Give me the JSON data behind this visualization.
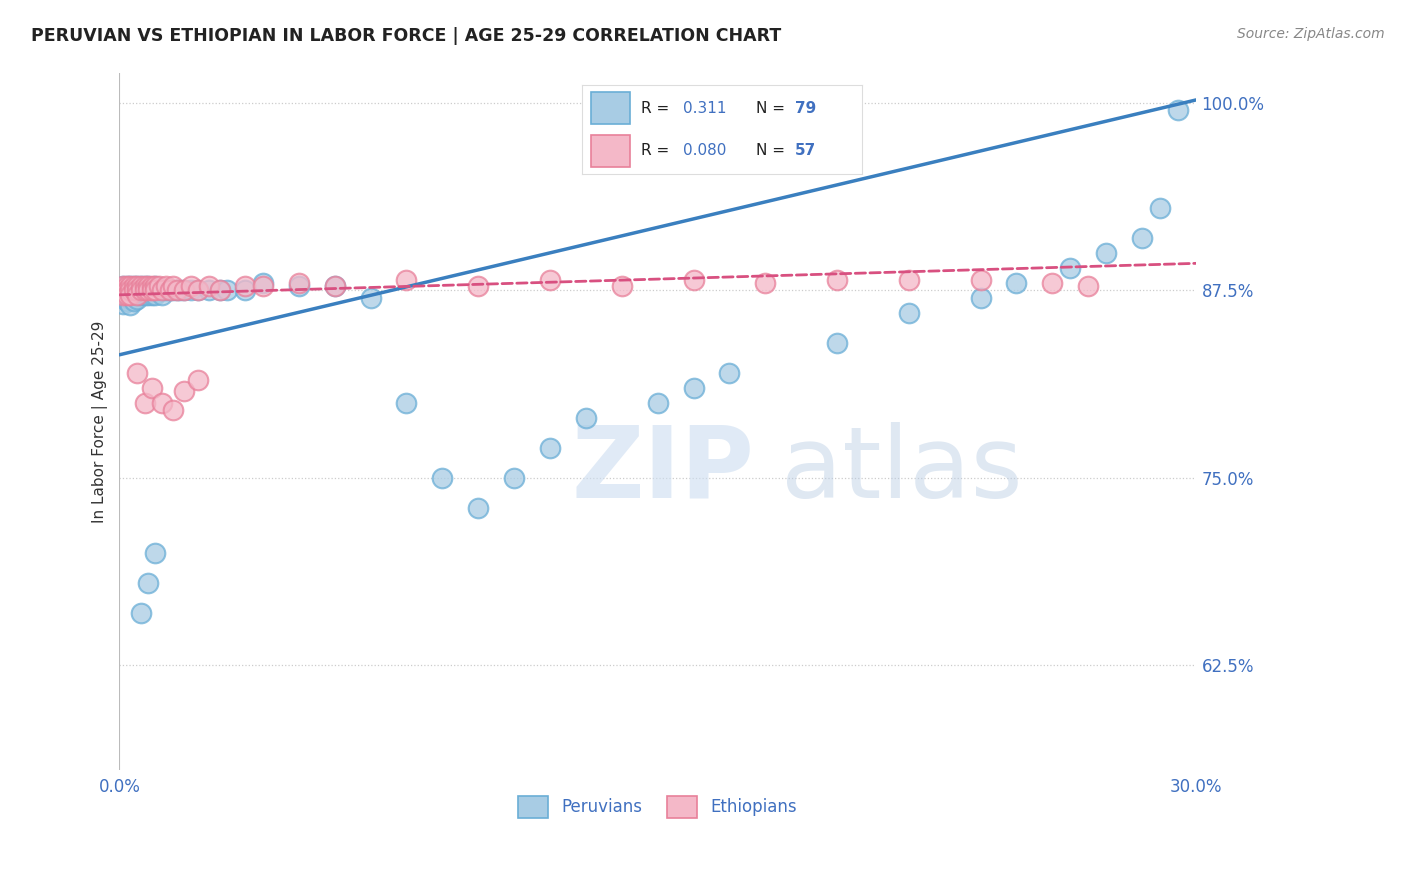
{
  "title": "PERUVIAN VS ETHIOPIAN IN LABOR FORCE | AGE 25-29 CORRELATION CHART",
  "source": "Source: ZipAtlas.com",
  "xlabel_peruvians": "Peruvians",
  "xlabel_ethiopians": "Ethiopians",
  "ylabel": "In Labor Force | Age 25-29",
  "xlim": [
    0.0,
    0.3
  ],
  "ylim": [
    0.555,
    1.02
  ],
  "yticks": [
    0.625,
    0.75,
    0.875,
    1.0
  ],
  "yticklabels": [
    "62.5%",
    "75.0%",
    "87.5%",
    "100.0%"
  ],
  "blue_color": "#a8cce4",
  "blue_edge": "#6aaed6",
  "pink_color": "#f4b8c8",
  "pink_edge": "#e8809a",
  "trend_blue": "#3a7fbf",
  "trend_pink": "#d85080",
  "legend_r_blue": "0.311",
  "legend_n_blue": "79",
  "legend_r_pink": "0.080",
  "legend_n_pink": "57",
  "trend_blue_x0": 0.0,
  "trend_blue_y0": 0.832,
  "trend_blue_x1": 0.3,
  "trend_blue_y1": 1.002,
  "trend_pink_x0": 0.0,
  "trend_pink_y0": 0.872,
  "trend_pink_x1": 0.3,
  "trend_pink_y1": 0.893,
  "peruvian_x": [
    0.001,
    0.001,
    0.001,
    0.001,
    0.001,
    0.002,
    0.002,
    0.002,
    0.002,
    0.002,
    0.002,
    0.003,
    0.003,
    0.003,
    0.003,
    0.003,
    0.004,
    0.004,
    0.004,
    0.004,
    0.004,
    0.005,
    0.005,
    0.005,
    0.005,
    0.006,
    0.006,
    0.006,
    0.007,
    0.007,
    0.007,
    0.008,
    0.008,
    0.008,
    0.009,
    0.009,
    0.01,
    0.01,
    0.01,
    0.011,
    0.012,
    0.012,
    0.013,
    0.014,
    0.015,
    0.016,
    0.017,
    0.018,
    0.02,
    0.022,
    0.025,
    0.028,
    0.03,
    0.035,
    0.04,
    0.05,
    0.06,
    0.07,
    0.08,
    0.09,
    0.1,
    0.11,
    0.12,
    0.13,
    0.15,
    0.16,
    0.17,
    0.2,
    0.22,
    0.24,
    0.25,
    0.265,
    0.275,
    0.285,
    0.29,
    0.01,
    0.008,
    0.006,
    0.295
  ],
  "peruvian_y": [
    0.875,
    0.878,
    0.872,
    0.869,
    0.866,
    0.875,
    0.878,
    0.872,
    0.869,
    0.875,
    0.868,
    0.875,
    0.878,
    0.872,
    0.869,
    0.865,
    0.875,
    0.878,
    0.872,
    0.875,
    0.868,
    0.875,
    0.878,
    0.872,
    0.869,
    0.875,
    0.878,
    0.872,
    0.875,
    0.878,
    0.872,
    0.875,
    0.878,
    0.872,
    0.875,
    0.872,
    0.875,
    0.878,
    0.872,
    0.875,
    0.875,
    0.872,
    0.875,
    0.875,
    0.875,
    0.875,
    0.875,
    0.875,
    0.875,
    0.875,
    0.875,
    0.875,
    0.875,
    0.875,
    0.88,
    0.878,
    0.878,
    0.87,
    0.8,
    0.75,
    0.73,
    0.75,
    0.77,
    0.79,
    0.8,
    0.81,
    0.82,
    0.84,
    0.86,
    0.87,
    0.88,
    0.89,
    0.9,
    0.91,
    0.93,
    0.7,
    0.68,
    0.66,
    0.995
  ],
  "ethiopian_x": [
    0.001,
    0.001,
    0.001,
    0.002,
    0.002,
    0.002,
    0.003,
    0.003,
    0.003,
    0.004,
    0.004,
    0.005,
    0.005,
    0.005,
    0.006,
    0.006,
    0.007,
    0.007,
    0.008,
    0.008,
    0.009,
    0.009,
    0.01,
    0.01,
    0.011,
    0.012,
    0.013,
    0.014,
    0.015,
    0.016,
    0.018,
    0.02,
    0.022,
    0.025,
    0.028,
    0.035,
    0.04,
    0.05,
    0.06,
    0.08,
    0.1,
    0.12,
    0.14,
    0.16,
    0.18,
    0.2,
    0.22,
    0.24,
    0.26,
    0.005,
    0.007,
    0.009,
    0.012,
    0.015,
    0.018,
    0.022,
    0.27
  ],
  "ethiopian_y": [
    0.878,
    0.875,
    0.872,
    0.878,
    0.875,
    0.872,
    0.878,
    0.875,
    0.872,
    0.878,
    0.875,
    0.878,
    0.875,
    0.872,
    0.878,
    0.875,
    0.878,
    0.875,
    0.878,
    0.875,
    0.878,
    0.875,
    0.878,
    0.875,
    0.878,
    0.875,
    0.878,
    0.875,
    0.878,
    0.875,
    0.875,
    0.878,
    0.875,
    0.878,
    0.875,
    0.878,
    0.878,
    0.88,
    0.878,
    0.882,
    0.878,
    0.882,
    0.878,
    0.882,
    0.88,
    0.882,
    0.882,
    0.882,
    0.88,
    0.82,
    0.8,
    0.81,
    0.8,
    0.795,
    0.808,
    0.815,
    0.878
  ],
  "watermark_zip": "ZIP",
  "watermark_atlas": "atlas",
  "bg_color": "#ffffff",
  "grid_color": "#cccccc",
  "axis_label_color": "#4070c0",
  "title_color": "#222222",
  "ylabel_color": "#333333"
}
